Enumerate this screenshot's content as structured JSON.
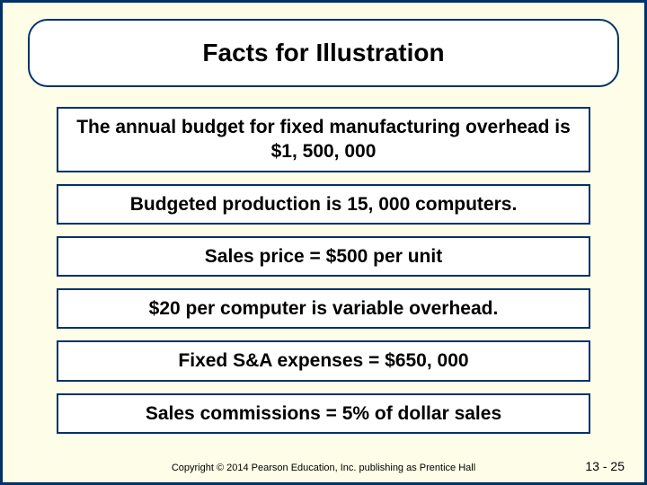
{
  "title": "Facts for Illustration",
  "facts": [
    "The annual budget for fixed manufacturing overhead is $1, 500, 000",
    "Budgeted production is 15, 000 computers.",
    "Sales price = $500 per unit",
    "$20 per computer is variable overhead.",
    "Fixed S&A expenses = $650, 000",
    "Sales commissions = 5% of dollar sales"
  ],
  "copyright": "Copyright © 2014 Pearson Education, Inc. publishing as Prentice Hall",
  "page_number": "13 - 25",
  "colors": {
    "background": "#fdfde8",
    "border": "#003366",
    "box_bg": "#ffffff",
    "text": "#000000"
  }
}
